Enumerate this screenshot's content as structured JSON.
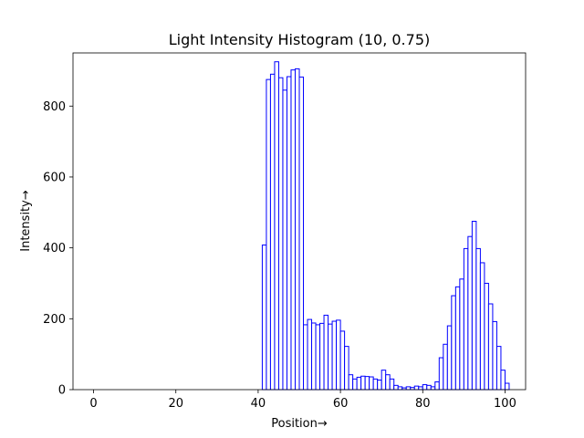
{
  "chart_data": {
    "type": "bar",
    "title": "Light Intensity Histogram (10, 0.75)",
    "xlabel": "Position→",
    "ylabel": "Intensity→",
    "xlim": [
      -5,
      105
    ],
    "ylim": [
      0,
      950
    ],
    "xticks": [
      0,
      20,
      40,
      60,
      80,
      100
    ],
    "yticks": [
      0,
      200,
      400,
      600,
      800
    ],
    "grid": false,
    "bar_edge_color": "#0000ff",
    "bar_fill_color": "#ffffff",
    "x": [
      0,
      1,
      2,
      3,
      4,
      5,
      6,
      7,
      8,
      9,
      10,
      11,
      12,
      13,
      14,
      15,
      16,
      17,
      18,
      19,
      20,
      21,
      22,
      23,
      24,
      25,
      26,
      27,
      28,
      29,
      30,
      31,
      32,
      33,
      34,
      35,
      36,
      37,
      38,
      39,
      40,
      41,
      42,
      43,
      44,
      45,
      46,
      47,
      48,
      49,
      50,
      51,
      52,
      53,
      54,
      55,
      56,
      57,
      58,
      59,
      60,
      61,
      62,
      63,
      64,
      65,
      66,
      67,
      68,
      69,
      70,
      71,
      72,
      73,
      74,
      75,
      76,
      77,
      78,
      79,
      80,
      81,
      82,
      83,
      84,
      85,
      86,
      87,
      88,
      89,
      90,
      91,
      92,
      93,
      94,
      95,
      96,
      97,
      98,
      99,
      100
    ],
    "values": [
      0,
      0,
      0,
      0,
      0,
      0,
      0,
      0,
      0,
      0,
      0,
      0,
      0,
      0,
      0,
      0,
      0,
      0,
      0,
      0,
      0,
      0,
      0,
      0,
      0,
      0,
      0,
      0,
      0,
      0,
      0,
      0,
      0,
      0,
      0,
      0,
      0,
      0,
      0,
      0,
      0,
      408,
      875,
      890,
      925,
      880,
      845,
      883,
      902,
      905,
      882,
      183,
      198,
      188,
      183,
      187,
      210,
      185,
      193,
      196,
      165,
      122,
      42,
      30,
      35,
      38,
      37,
      36,
      30,
      27,
      55,
      42,
      30,
      12,
      8,
      5,
      8,
      6,
      10,
      8,
      14,
      12,
      8,
      22,
      90,
      128,
      180,
      265,
      290,
      312,
      398,
      432,
      475,
      398,
      358,
      300,
      242,
      192,
      122,
      55,
      18
    ]
  }
}
